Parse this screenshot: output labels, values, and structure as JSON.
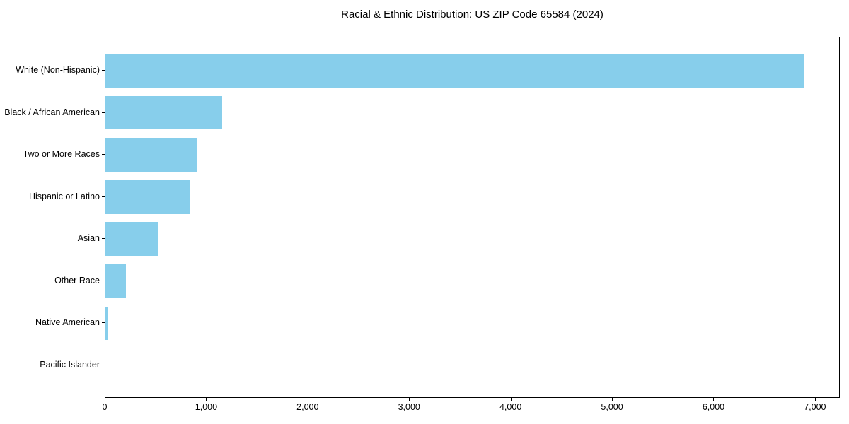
{
  "title": "Racial & Ethnic Distribution: US ZIP Code 65584 (2024)",
  "chart_data": {
    "type": "bar",
    "orientation": "horizontal",
    "title": "Racial & Ethnic Distribution: US ZIP Code 65584 (2024)",
    "xlabel": "",
    "ylabel": "",
    "categories": [
      "White (Non-Hispanic)",
      "Black / African American",
      "Two or More Races",
      "Hispanic or Latino",
      "Asian",
      "Other Race",
      "Native American",
      "Pacific Islander"
    ],
    "values": [
      6900,
      1150,
      900,
      840,
      520,
      200,
      25,
      0
    ],
    "xlim": [
      0,
      7245
    ],
    "x_ticks": [
      0,
      1000,
      2000,
      3000,
      4000,
      5000,
      6000,
      7000
    ],
    "x_tick_labels": [
      "0",
      "1,000",
      "2,000",
      "3,000",
      "4,000",
      "5,000",
      "6,000",
      "7,000"
    ],
    "grid": false,
    "legend": null,
    "bar_color": "#87ceeb",
    "background_color": "#ffffff",
    "spine_color": "#000000"
  }
}
